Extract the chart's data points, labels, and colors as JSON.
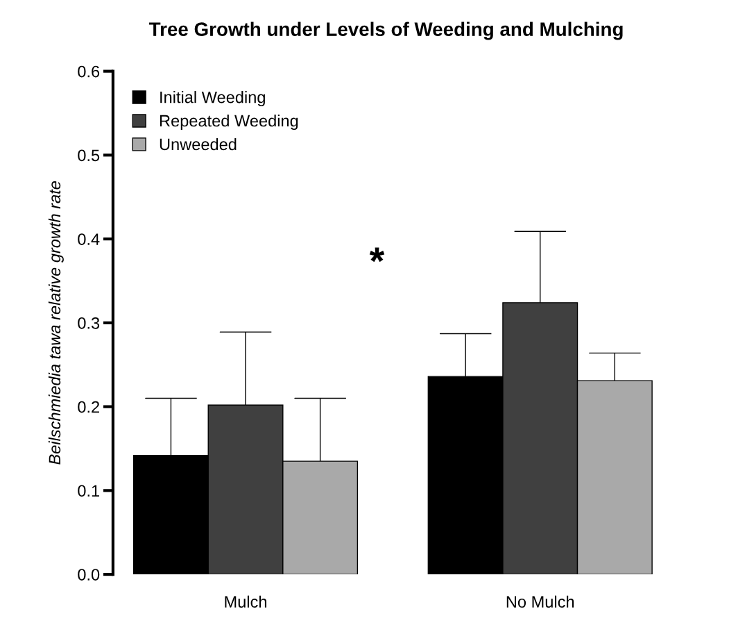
{
  "chart_data": {
    "type": "bar",
    "title": "Tree Growth under Levels of Weeding and Mulching",
    "ylabel": "Beilschmiedia tawa relative growth rate",
    "categories": [
      "Mulch",
      "No Mulch"
    ],
    "series": [
      {
        "name": "Initial Weeding",
        "color": "#000000",
        "values": [
          0.142,
          0.236
        ],
        "errors": [
          [
            0.142,
            0.21
          ],
          [
            0.236,
            0.287
          ]
        ]
      },
      {
        "name": "Repeated Weeding",
        "color": "#404040",
        "values": [
          0.202,
          0.324
        ],
        "errors": [
          [
            0.202,
            0.289
          ],
          [
            0.324,
            0.409
          ]
        ]
      },
      {
        "name": "Unweeded",
        "color": "#a9a9a9",
        "values": [
          0.135,
          0.231
        ],
        "errors": [
          [
            0.135,
            0.21
          ],
          [
            0.231,
            0.264
          ]
        ]
      }
    ],
    "ylim": [
      0,
      0.6
    ],
    "yticks": [
      {
        "value": 0,
        "label": "0.0"
      },
      0.1,
      0.2,
      0.3,
      0.4,
      0.5,
      0.6
    ],
    "annotations": [
      "*"
    ],
    "legend": "top left",
    "grid": false
  }
}
